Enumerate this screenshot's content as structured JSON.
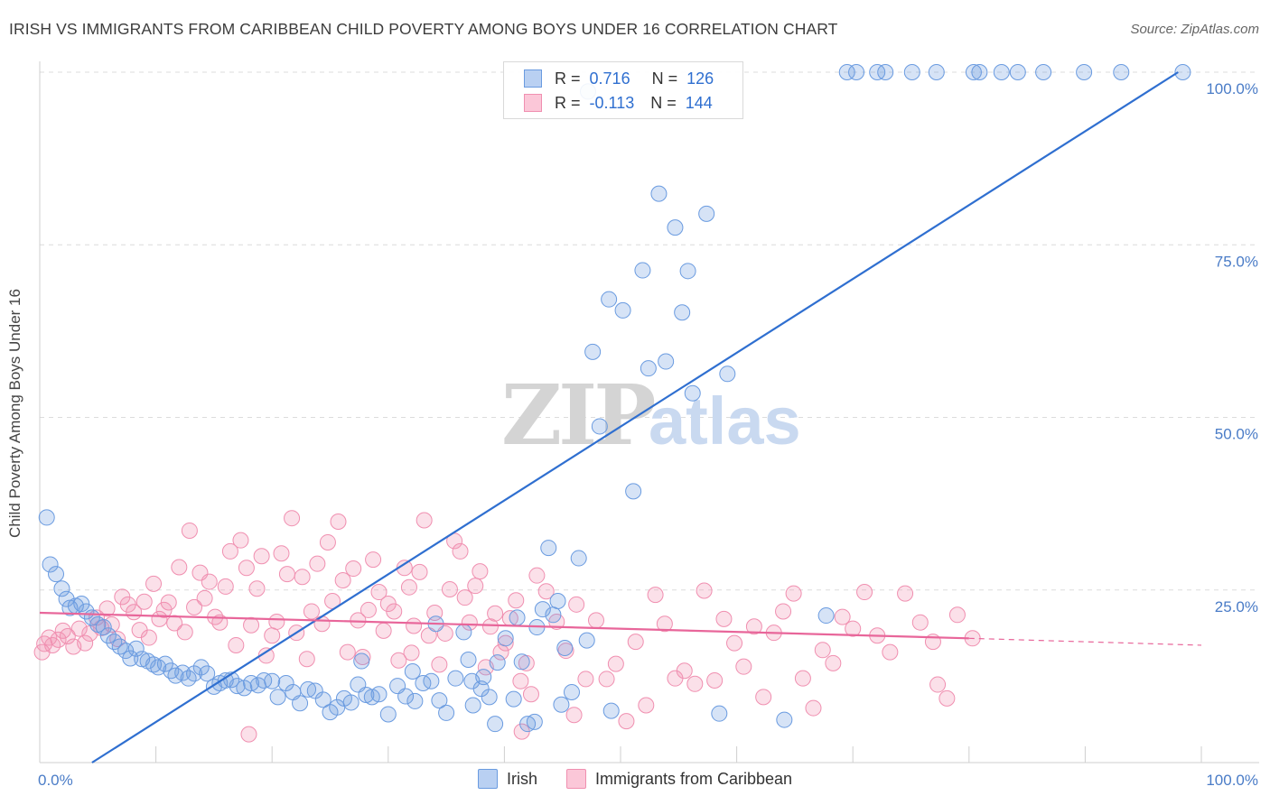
{
  "title": "IRISH VS IMMIGRANTS FROM CARIBBEAN CHILD POVERTY AMONG BOYS UNDER 16 CORRELATION CHART",
  "source": "Source: ZipAtlas.com",
  "watermark": {
    "zip": "ZIP",
    "atlas": "atlas"
  },
  "legend_stats": {
    "irish": {
      "r_label": "R =",
      "r_value": "0.716",
      "n_label": "N =",
      "n_value": "126"
    },
    "caribbean": {
      "r_label": "R =",
      "r_value": "-0.113",
      "n_label": "N =",
      "n_value": "144"
    }
  },
  "chart_data": {
    "type": "scatter",
    "title": "IRISH VS IMMIGRANTS FROM CARIBBEAN CHILD POVERTY AMONG BOYS UNDER 16 CORRELATION CHART",
    "xlabel": "",
    "ylabel": "Child Poverty Among Boys Under 16",
    "xlim": [
      0,
      100
    ],
    "ylim": [
      0,
      100
    ],
    "x_tick_labels": [
      "0.0%",
      "100.0%"
    ],
    "y_tick_labels": [
      "25.0%",
      "50.0%",
      "75.0%",
      "100.0%"
    ],
    "y_ticks": [
      25,
      50,
      75,
      100
    ],
    "grid": true,
    "legend_position": "bottom",
    "colors": {
      "irish": "#6a9be0",
      "caribbean": "#f08fb0",
      "irish_line": "#2f6fd0",
      "caribbean_line": "#e8669a"
    },
    "series": [
      {
        "name": "Irish",
        "trend": {
          "x": [
            4.5,
            98
          ],
          "y": [
            0,
            100
          ]
        },
        "points": [
          [
            0.6,
            35.5
          ],
          [
            0.9,
            28.7
          ],
          [
            1.4,
            27.3
          ],
          [
            1.9,
            25.2
          ],
          [
            2.3,
            23.7
          ],
          [
            2.6,
            22.4
          ],
          [
            3.1,
            22.7
          ],
          [
            3.6,
            23.0
          ],
          [
            4.0,
            21.9
          ],
          [
            4.5,
            21.0
          ],
          [
            5.0,
            20.0
          ],
          [
            5.5,
            19.6
          ],
          [
            5.9,
            18.4
          ],
          [
            6.4,
            17.5
          ],
          [
            6.9,
            16.8
          ],
          [
            7.4,
            16.2
          ],
          [
            7.8,
            15.1
          ],
          [
            8.3,
            16.5
          ],
          [
            8.8,
            15.0
          ],
          [
            9.3,
            14.7
          ],
          [
            9.8,
            14.2
          ],
          [
            10.2,
            13.8
          ],
          [
            10.8,
            14.3
          ],
          [
            11.3,
            13.3
          ],
          [
            11.7,
            12.6
          ],
          [
            12.3,
            13.0
          ],
          [
            12.8,
            12.2
          ],
          [
            13.3,
            12.9
          ],
          [
            13.9,
            13.8
          ],
          [
            14.4,
            12.9
          ],
          [
            15.0,
            11.0
          ],
          [
            15.5,
            11.5
          ],
          [
            16.0,
            11.9
          ],
          [
            16.5,
            12.0
          ],
          [
            17.0,
            11.1
          ],
          [
            17.6,
            10.8
          ],
          [
            18.2,
            11.5
          ],
          [
            18.8,
            11.2
          ],
          [
            19.3,
            11.9
          ],
          [
            20.0,
            11.8
          ],
          [
            20.5,
            9.5
          ],
          [
            21.2,
            11.5
          ],
          [
            21.8,
            10.2
          ],
          [
            22.4,
            8.6
          ],
          [
            23.1,
            10.6
          ],
          [
            23.7,
            10.4
          ],
          [
            24.4,
            9.1
          ],
          [
            25.0,
            7.3
          ],
          [
            25.6,
            8.0
          ],
          [
            26.2,
            9.3
          ],
          [
            26.8,
            8.7
          ],
          [
            27.4,
            11.3
          ],
          [
            28.1,
            9.8
          ],
          [
            28.6,
            9.5
          ],
          [
            29.2,
            9.9
          ],
          [
            30.0,
            7.0
          ],
          [
            30.8,
            11.1
          ],
          [
            31.5,
            9.6
          ],
          [
            32.3,
            8.9
          ],
          [
            33.0,
            11.5
          ],
          [
            33.7,
            11.8
          ],
          [
            34.4,
            9.0
          ],
          [
            35.0,
            7.2
          ],
          [
            35.8,
            12.2
          ],
          [
            36.5,
            18.9
          ],
          [
            37.2,
            11.8
          ],
          [
            38.0,
            10.7
          ],
          [
            38.7,
            9.5
          ],
          [
            39.4,
            14.5
          ],
          [
            40.1,
            18.0
          ],
          [
            40.8,
            9.2
          ],
          [
            41.5,
            14.6
          ],
          [
            42.0,
            5.6
          ],
          [
            42.6,
            5.9
          ],
          [
            43.3,
            22.2
          ],
          [
            43.8,
            31.1
          ],
          [
            44.2,
            21.4
          ],
          [
            44.6,
            23.4
          ],
          [
            45.2,
            16.6
          ],
          [
            45.8,
            10.2
          ],
          [
            46.4,
            29.6
          ],
          [
            47.1,
            17.7
          ],
          [
            47.6,
            59.5
          ],
          [
            48.2,
            48.7
          ],
          [
            49.0,
            67.1
          ],
          [
            50.2,
            65.5
          ],
          [
            51.1,
            39.3
          ],
          [
            51.9,
            71.3
          ],
          [
            52.4,
            57.1
          ],
          [
            53.3,
            82.4
          ],
          [
            53.9,
            58.1
          ],
          [
            54.7,
            77.5
          ],
          [
            55.3,
            65.2
          ],
          [
            55.8,
            71.2
          ],
          [
            56.2,
            53.5
          ],
          [
            57.4,
            79.5
          ],
          [
            59.2,
            56.3
          ],
          [
            64.1,
            6.2
          ],
          [
            67.7,
            21.3
          ],
          [
            69.5,
            100
          ],
          [
            70.3,
            100
          ],
          [
            72.1,
            100
          ],
          [
            72.8,
            100
          ],
          [
            75.1,
            100
          ],
          [
            77.2,
            100
          ],
          [
            80.4,
            100
          ],
          [
            80.9,
            100
          ],
          [
            82.8,
            100
          ],
          [
            84.2,
            100
          ],
          [
            86.4,
            100
          ],
          [
            89.9,
            100
          ],
          [
            93.1,
            100
          ],
          [
            98.4,
            100
          ],
          [
            47.2,
            97.2
          ],
          [
            37.3,
            8.3
          ],
          [
            39.2,
            5.6
          ],
          [
            49.2,
            7.5
          ],
          [
            58.5,
            7.1
          ],
          [
            34.1,
            20.1
          ],
          [
            32.1,
            13.2
          ],
          [
            27.7,
            14.7
          ],
          [
            41.1,
            21.0
          ],
          [
            38.2,
            12.4
          ],
          [
            42.8,
            19.6
          ],
          [
            36.9,
            14.9
          ],
          [
            44.9,
            8.4
          ]
        ]
      },
      {
        "name": "Immigrants from Caribbean",
        "trend": {
          "x": [
            0,
            80
          ],
          "y": [
            21.7,
            18.0
          ],
          "dash_x": [
            80,
            100
          ],
          "dash_y": [
            18.0,
            17.0
          ]
        },
        "points": [
          [
            0.2,
            16.0
          ],
          [
            0.4,
            17.2
          ],
          [
            0.8,
            18.1
          ],
          [
            1.1,
            17.0
          ],
          [
            1.6,
            17.8
          ],
          [
            2.0,
            19.1
          ],
          [
            2.4,
            18.3
          ],
          [
            2.9,
            16.8
          ],
          [
            3.4,
            19.4
          ],
          [
            3.9,
            17.3
          ],
          [
            4.3,
            18.7
          ],
          [
            4.9,
            21.0
          ],
          [
            5.3,
            19.5
          ],
          [
            5.8,
            22.3
          ],
          [
            6.2,
            20.0
          ],
          [
            6.7,
            17.9
          ],
          [
            7.1,
            24.0
          ],
          [
            7.6,
            22.9
          ],
          [
            8.1,
            21.8
          ],
          [
            8.6,
            19.2
          ],
          [
            9.0,
            23.3
          ],
          [
            9.4,
            18.1
          ],
          [
            9.8,
            25.9
          ],
          [
            10.3,
            20.8
          ],
          [
            10.7,
            22.1
          ],
          [
            11.1,
            23.2
          ],
          [
            11.6,
            20.2
          ],
          [
            12.0,
            28.3
          ],
          [
            12.5,
            18.9
          ],
          [
            12.9,
            33.6
          ],
          [
            13.3,
            22.5
          ],
          [
            13.8,
            27.5
          ],
          [
            14.2,
            23.8
          ],
          [
            14.6,
            26.2
          ],
          [
            15.1,
            21.1
          ],
          [
            15.5,
            20.3
          ],
          [
            16.0,
            25.5
          ],
          [
            16.4,
            30.6
          ],
          [
            16.9,
            17.0
          ],
          [
            17.3,
            32.2
          ],
          [
            17.8,
            28.2
          ],
          [
            18.2,
            19.9
          ],
          [
            18.7,
            25.2
          ],
          [
            19.1,
            29.9
          ],
          [
            19.5,
            15.5
          ],
          [
            20.0,
            18.4
          ],
          [
            20.4,
            20.4
          ],
          [
            20.8,
            30.3
          ],
          [
            21.3,
            27.3
          ],
          [
            21.7,
            35.4
          ],
          [
            22.1,
            18.8
          ],
          [
            22.6,
            26.9
          ],
          [
            23.0,
            15.0
          ],
          [
            23.4,
            21.9
          ],
          [
            23.9,
            28.8
          ],
          [
            24.3,
            20.1
          ],
          [
            24.8,
            31.9
          ],
          [
            25.2,
            23.4
          ],
          [
            25.7,
            34.9
          ],
          [
            26.1,
            26.4
          ],
          [
            26.5,
            16.0
          ],
          [
            27.0,
            28.1
          ],
          [
            27.4,
            20.6
          ],
          [
            27.8,
            15.3
          ],
          [
            28.3,
            22.1
          ],
          [
            28.7,
            29.4
          ],
          [
            29.2,
            24.7
          ],
          [
            29.6,
            19.1
          ],
          [
            30.0,
            23.0
          ],
          [
            30.5,
            21.9
          ],
          [
            30.9,
            14.8
          ],
          [
            31.4,
            28.2
          ],
          [
            31.8,
            25.4
          ],
          [
            32.2,
            19.8
          ],
          [
            32.7,
            27.6
          ],
          [
            33.1,
            35.1
          ],
          [
            33.5,
            18.4
          ],
          [
            34.0,
            21.7
          ],
          [
            34.4,
            14.2
          ],
          [
            34.9,
            18.7
          ],
          [
            35.3,
            25.1
          ],
          [
            35.7,
            32.1
          ],
          [
            36.2,
            30.6
          ],
          [
            36.6,
            23.9
          ],
          [
            37.0,
            20.3
          ],
          [
            37.5,
            25.6
          ],
          [
            37.9,
            27.7
          ],
          [
            38.4,
            13.8
          ],
          [
            38.8,
            19.7
          ],
          [
            39.2,
            21.6
          ],
          [
            39.7,
            16.0
          ],
          [
            40.1,
            17.3
          ],
          [
            40.5,
            20.9
          ],
          [
            41.0,
            23.5
          ],
          [
            41.4,
            11.8
          ],
          [
            41.9,
            14.4
          ],
          [
            42.3,
            9.9
          ],
          [
            42.8,
            27.1
          ],
          [
            43.6,
            24.8
          ],
          [
            44.5,
            20.4
          ],
          [
            45.3,
            16.2
          ],
          [
            46.2,
            22.9
          ],
          [
            47.0,
            12.1
          ],
          [
            47.9,
            20.6
          ],
          [
            48.8,
            12.1
          ],
          [
            49.6,
            14.3
          ],
          [
            50.5,
            6.0
          ],
          [
            51.3,
            17.5
          ],
          [
            52.2,
            8.3
          ],
          [
            53.0,
            24.3
          ],
          [
            53.8,
            20.1
          ],
          [
            54.7,
            12.2
          ],
          [
            55.5,
            13.3
          ],
          [
            56.4,
            11.4
          ],
          [
            57.2,
            24.9
          ],
          [
            58.1,
            11.9
          ],
          [
            58.9,
            20.8
          ],
          [
            59.8,
            17.3
          ],
          [
            60.6,
            13.9
          ],
          [
            61.5,
            19.7
          ],
          [
            62.3,
            9.5
          ],
          [
            63.2,
            18.8
          ],
          [
            64.0,
            21.9
          ],
          [
            64.9,
            24.5
          ],
          [
            65.7,
            12.2
          ],
          [
            66.6,
            7.9
          ],
          [
            67.4,
            16.3
          ],
          [
            68.3,
            14.4
          ],
          [
            69.1,
            21.1
          ],
          [
            70.0,
            19.4
          ],
          [
            71.0,
            24.7
          ],
          [
            72.1,
            18.4
          ],
          [
            73.2,
            16.0
          ],
          [
            74.5,
            24.5
          ],
          [
            75.8,
            20.3
          ],
          [
            76.9,
            17.5
          ],
          [
            77.3,
            11.3
          ],
          [
            78.1,
            9.3
          ],
          [
            79.0,
            21.4
          ],
          [
            80.3,
            18.0
          ],
          [
            18.0,
            4.1
          ],
          [
            32.0,
            15.9
          ],
          [
            41.5,
            4.5
          ],
          [
            46.0,
            6.9
          ]
        ]
      }
    ]
  },
  "bottom_legend": [
    "Irish",
    "Immigrants from Caribbean"
  ]
}
